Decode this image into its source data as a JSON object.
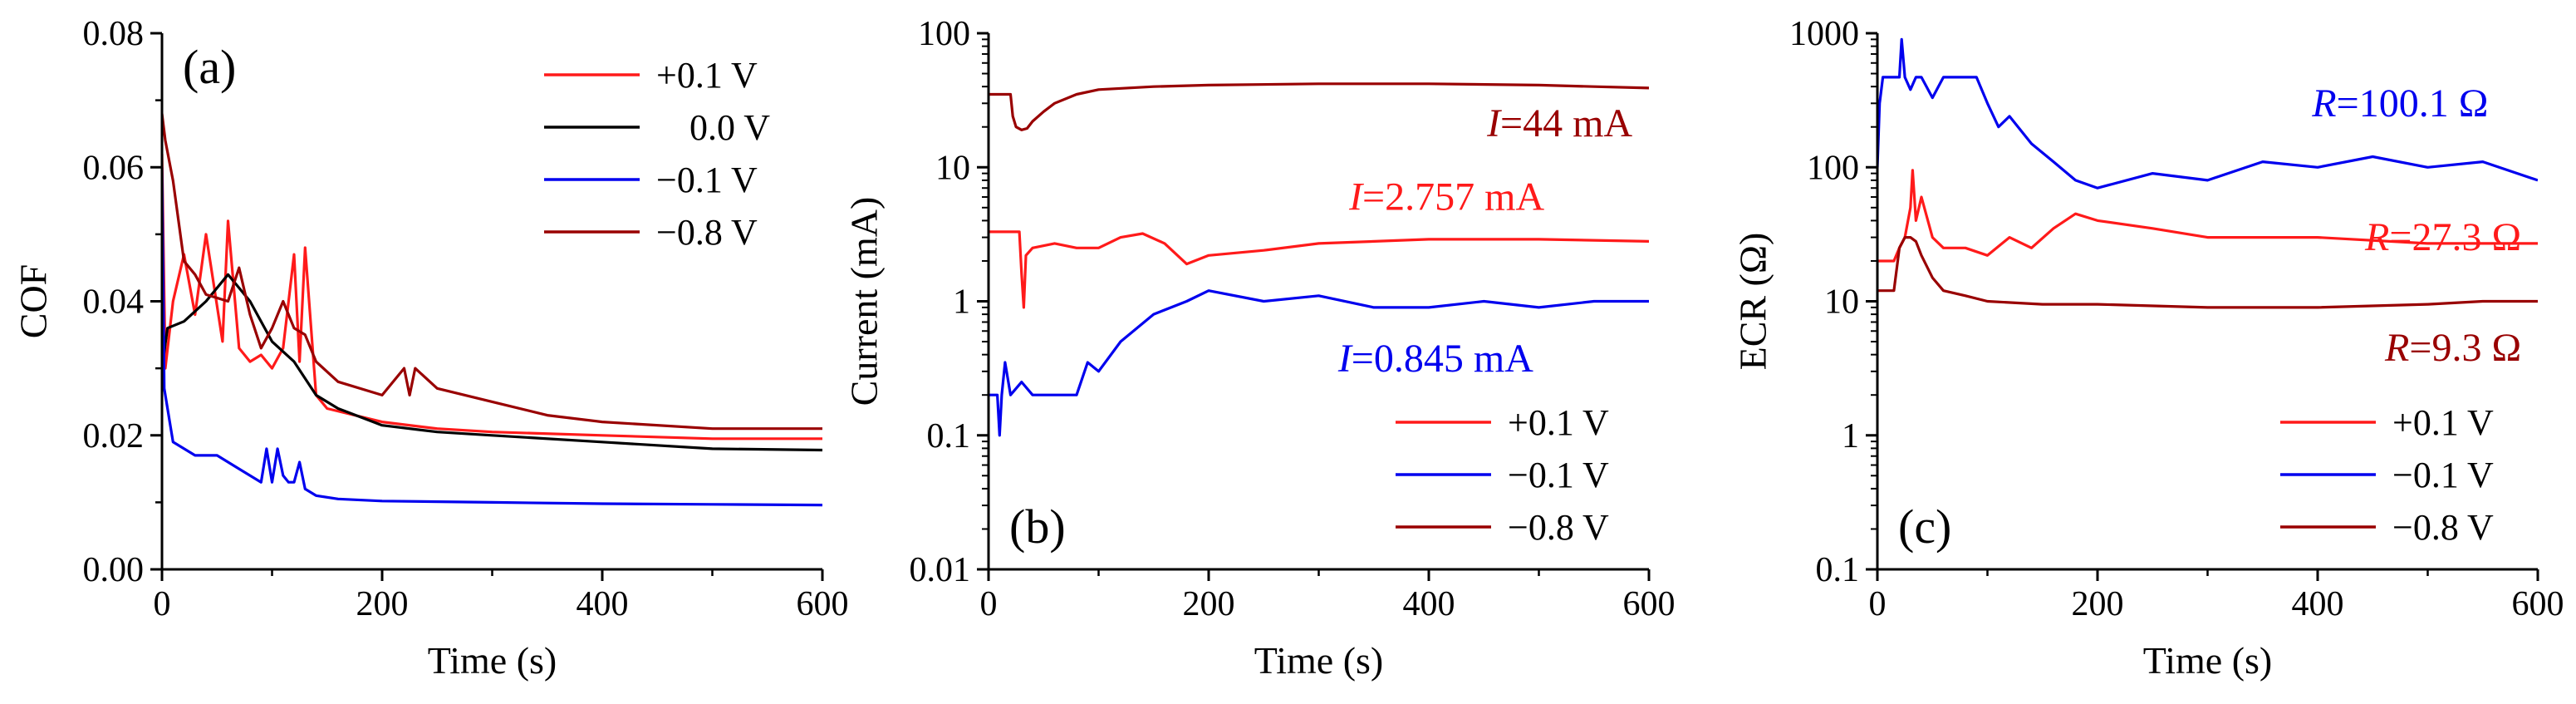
{
  "chart_data": [
    {
      "type": "line",
      "panel_label": "(a)",
      "xlabel": "Time (s)",
      "ylabel": "COF",
      "xlim": [
        0,
        600
      ],
      "ylim": [
        0,
        0.08
      ],
      "xscale": "linear",
      "yscale": "linear",
      "xticks": [
        0,
        200,
        400,
        600
      ],
      "xtick_labels": [
        "0",
        "200",
        "400",
        "600"
      ],
      "yticks": [
        0,
        0.02,
        0.04,
        0.06,
        0.08
      ],
      "ytick_labels": [
        "0.00",
        "0.02",
        "0.04",
        "0.06",
        "0.08"
      ],
      "legend_position": "top-right",
      "series": [
        {
          "name": "+0.1 V",
          "color": "#ff1a1a",
          "x": [
            0,
            3,
            10,
            20,
            30,
            40,
            55,
            60,
            70,
            80,
            90,
            100,
            110,
            120,
            125,
            130,
            140,
            150,
            200,
            250,
            300,
            400,
            500,
            600
          ],
          "y": [
            0.062,
            0.03,
            0.04,
            0.047,
            0.038,
            0.05,
            0.034,
            0.052,
            0.033,
            0.031,
            0.032,
            0.03,
            0.033,
            0.047,
            0.031,
            0.048,
            0.026,
            0.024,
            0.022,
            0.021,
            0.0205,
            0.02,
            0.0195,
            0.0195
          ]
        },
        {
          "name": "0.0 V",
          "color": "#000000",
          "x": [
            0,
            5,
            20,
            40,
            60,
            70,
            80,
            100,
            120,
            140,
            160,
            200,
            250,
            300,
            400,
            500,
            600
          ],
          "y": [
            0.03,
            0.036,
            0.037,
            0.04,
            0.044,
            0.042,
            0.04,
            0.034,
            0.031,
            0.026,
            0.024,
            0.0215,
            0.0205,
            0.02,
            0.019,
            0.018,
            0.0178
          ]
        },
        {
          "name": "−0.1 V",
          "color": "#0000ee",
          "x": [
            0,
            2,
            10,
            30,
            50,
            70,
            90,
            95,
            100,
            105,
            110,
            115,
            120,
            125,
            130,
            140,
            160,
            200,
            300,
            400,
            500,
            600
          ],
          "y": [
            0.06,
            0.027,
            0.019,
            0.017,
            0.017,
            0.015,
            0.013,
            0.018,
            0.013,
            0.018,
            0.014,
            0.013,
            0.013,
            0.016,
            0.012,
            0.011,
            0.0105,
            0.0102,
            0.01,
            0.0098,
            0.0097,
            0.0096
          ]
        },
        {
          "name": "−0.8 V",
          "color": "#990000",
          "x": [
            0,
            3,
            10,
            20,
            30,
            40,
            60,
            70,
            80,
            90,
            100,
            110,
            120,
            130,
            140,
            160,
            200,
            220,
            225,
            230,
            250,
            300,
            350,
            400,
            500,
            600
          ],
          "y": [
            0.068,
            0.064,
            0.058,
            0.046,
            0.044,
            0.041,
            0.04,
            0.045,
            0.038,
            0.033,
            0.036,
            0.04,
            0.036,
            0.035,
            0.031,
            0.028,
            0.026,
            0.03,
            0.026,
            0.03,
            0.027,
            0.025,
            0.023,
            0.022,
            0.021,
            0.021
          ]
        }
      ]
    },
    {
      "type": "line",
      "panel_label": "(b)",
      "xlabel": "Time (s)",
      "ylabel": "Current (mA)",
      "xlim": [
        0,
        600
      ],
      "ylim": [
        0.01,
        100
      ],
      "xscale": "linear",
      "yscale": "log",
      "xticks": [
        0,
        200,
        400,
        600
      ],
      "xtick_labels": [
        "0",
        "200",
        "400",
        "600"
      ],
      "yticks": [
        0.01,
        0.1,
        1,
        10,
        100
      ],
      "ytick_labels": [
        "0.01",
        "0.1",
        "1",
        "10",
        "100"
      ],
      "legend_position": "bottom-right",
      "annotations": [
        {
          "var": "I",
          "text": "=44 mA",
          "color": "#990000",
          "x": 585,
          "y": 17,
          "anchor": "end"
        },
        {
          "var": "I",
          "text": "=2.757 mA",
          "color": "#ff1a1a",
          "x": 505,
          "y": 4.8,
          "anchor": "end"
        },
        {
          "var": "I",
          "text": "=0.845 mA",
          "color": "#0000ee",
          "x": 495,
          "y": 0.3,
          "anchor": "end"
        }
      ],
      "series": [
        {
          "name": "+0.1 V",
          "color": "#ff1a1a",
          "x": [
            0,
            28,
            30,
            32,
            34,
            40,
            60,
            80,
            100,
            120,
            140,
            160,
            180,
            200,
            250,
            300,
            400,
            500,
            600
          ],
          "y": [
            3.3,
            3.3,
            1.6,
            0.9,
            2.2,
            2.5,
            2.7,
            2.5,
            2.5,
            3.0,
            3.2,
            2.7,
            1.9,
            2.2,
            2.4,
            2.7,
            2.9,
            2.9,
            2.8
          ]
        },
        {
          "name": "−0.1 V",
          "color": "#0000ee",
          "x": [
            0,
            8,
            10,
            12,
            15,
            20,
            30,
            40,
            60,
            80,
            90,
            100,
            120,
            150,
            180,
            200,
            250,
            300,
            350,
            400,
            450,
            500,
            550,
            600
          ],
          "y": [
            0.2,
            0.2,
            0.1,
            0.2,
            0.35,
            0.2,
            0.25,
            0.2,
            0.2,
            0.2,
            0.35,
            0.3,
            0.5,
            0.8,
            1.0,
            1.2,
            1.0,
            1.1,
            0.9,
            0.9,
            1.0,
            0.9,
            1.0,
            1.0
          ]
        },
        {
          "name": "−0.8 V",
          "color": "#990000",
          "x": [
            0,
            20,
            22,
            25,
            30,
            35,
            40,
            50,
            60,
            80,
            100,
            150,
            200,
            300,
            400,
            500,
            550,
            600
          ],
          "y": [
            35,
            35,
            24,
            20,
            19,
            19.5,
            22,
            26,
            30,
            35,
            38,
            40,
            41,
            42,
            42,
            41,
            40,
            39
          ]
        }
      ]
    },
    {
      "type": "line",
      "panel_label": "(c)",
      "xlabel": "Time (s)",
      "ylabel": "ECR (Ω)",
      "xlim": [
        0,
        600
      ],
      "ylim": [
        0.1,
        1000
      ],
      "xscale": "linear",
      "yscale": "log",
      "xticks": [
        0,
        200,
        400,
        600
      ],
      "xtick_labels": [
        "0",
        "200",
        "400",
        "600"
      ],
      "yticks": [
        0.1,
        1,
        10,
        100,
        1000
      ],
      "ytick_labels": [
        "0.1",
        "1",
        "10",
        "100",
        "1000"
      ],
      "legend_position": "bottom-right",
      "annotations": [
        {
          "var": "R",
          "text": "=100.1 Ω",
          "color": "#0000ee",
          "x": 555,
          "y": 240,
          "anchor": "end"
        },
        {
          "var": "R",
          "text": "=27.3 Ω",
          "color": "#ff1a1a",
          "x": 585,
          "y": 24,
          "anchor": "end"
        },
        {
          "var": "R",
          "text": "=9.3 Ω",
          "color": "#990000",
          "x": 585,
          "y": 3.6,
          "anchor": "end"
        }
      ],
      "series": [
        {
          "name": "+0.1 V",
          "color": "#ff1a1a",
          "x": [
            0,
            15,
            20,
            25,
            30,
            32,
            35,
            40,
            50,
            60,
            80,
            100,
            120,
            140,
            160,
            180,
            200,
            250,
            300,
            400,
            500,
            600
          ],
          "y": [
            20,
            20,
            25,
            30,
            50,
            95,
            40,
            60,
            30,
            25,
            25,
            22,
            30,
            25,
            35,
            45,
            40,
            35,
            30,
            30,
            27,
            27
          ]
        },
        {
          "name": "−0.1 V",
          "color": "#0000ee",
          "x": [
            0,
            2,
            5,
            8,
            15,
            20,
            22,
            25,
            30,
            35,
            40,
            50,
            60,
            70,
            80,
            90,
            100,
            110,
            120,
            140,
            160,
            180,
            200,
            250,
            300,
            350,
            400,
            450,
            500,
            550,
            600
          ],
          "y": [
            100,
            300,
            470,
            470,
            470,
            470,
            900,
            470,
            380,
            470,
            470,
            330,
            470,
            470,
            470,
            470,
            300,
            200,
            240,
            150,
            110,
            80,
            70,
            90,
            80,
            110,
            100,
            120,
            100,
            110,
            80
          ]
        },
        {
          "name": "−0.8 V",
          "color": "#990000",
          "x": [
            0,
            15,
            20,
            25,
            30,
            35,
            40,
            50,
            60,
            80,
            100,
            150,
            200,
            300,
            400,
            500,
            550,
            600
          ],
          "y": [
            12,
            12,
            25,
            30,
            30,
            28,
            22,
            15,
            12,
            11,
            10,
            9.5,
            9.5,
            9.0,
            9.0,
            9.5,
            10,
            10
          ]
        }
      ]
    }
  ]
}
